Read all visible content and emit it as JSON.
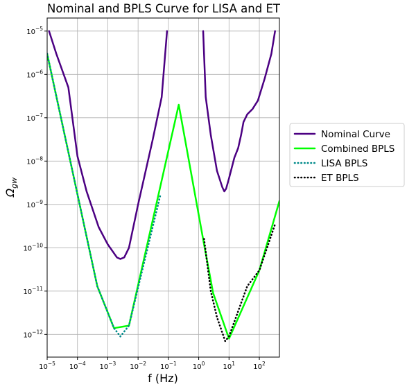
{
  "chart_data": {
    "type": "line",
    "title": "Nominal and BPLS Curve for LISA and ET",
    "xlabel": "f (Hz)",
    "ylabel": "Ω_gw",
    "ylabel_main": "Ω",
    "ylabel_sub": "gw",
    "x_scale": "log",
    "y_scale": "log",
    "xlim": [
      1e-05,
      460
    ],
    "ylim": [
      3e-13,
      2e-05
    ],
    "grid": true,
    "legend_position": "outside-right",
    "x_ticks": [
      {
        "value": 1e-05,
        "base": "10",
        "exp": "−5"
      },
      {
        "value": 0.0001,
        "base": "10",
        "exp": "−4"
      },
      {
        "value": 0.001,
        "base": "10",
        "exp": "−3"
      },
      {
        "value": 0.01,
        "base": "10",
        "exp": "−2"
      },
      {
        "value": 0.1,
        "base": "10",
        "exp": "−1"
      },
      {
        "value": 1,
        "base": "10",
        "exp": "0"
      },
      {
        "value": 10,
        "base": "10",
        "exp": "1"
      },
      {
        "value": 100,
        "base": "10",
        "exp": "2"
      }
    ],
    "y_ticks": [
      {
        "value": 1e-12,
        "base": "10",
        "exp": "−12"
      },
      {
        "value": 1e-11,
        "base": "10",
        "exp": "−11"
      },
      {
        "value": 1e-10,
        "base": "10",
        "exp": "−10"
      },
      {
        "value": 1e-09,
        "base": "10",
        "exp": "−9"
      },
      {
        "value": 1e-08,
        "base": "10",
        "exp": "−8"
      },
      {
        "value": 1e-07,
        "base": "10",
        "exp": "−7"
      },
      {
        "value": 1e-06,
        "base": "10",
        "exp": "−6"
      },
      {
        "value": 1e-05,
        "base": "10",
        "exp": "−5"
      }
    ],
    "series": [
      {
        "name": "Nominal Curve",
        "color": "#4b0082",
        "style": "solid",
        "segments": [
          [
            [
              1.15e-05,
              1e-05
            ],
            [
              2e-05,
              3e-06
            ],
            [
              5e-05,
              5e-07
            ],
            [
              0.0001,
              1.3e-08
            ],
            [
              0.0002,
              2e-09
            ],
            [
              0.0005,
              3e-10
            ],
            [
              0.001,
              1.2e-10
            ],
            [
              0.002,
              6e-11
            ],
            [
              0.0026,
              5.5e-11
            ],
            [
              0.0035,
              6e-11
            ],
            [
              0.005,
              1e-10
            ],
            [
              0.01,
              1e-09
            ],
            [
              0.03,
              3e-08
            ],
            [
              0.06,
              3e-07
            ],
            [
              0.09,
              1e-05
            ]
          ],
          [
            [
              1.4,
              1e-05
            ],
            [
              1.7,
              3e-07
            ],
            [
              2.5,
              4e-08
            ],
            [
              4,
              6e-09
            ],
            [
              6,
              2.5e-09
            ],
            [
              7,
              2e-09
            ],
            [
              8,
              2.3e-09
            ],
            [
              10,
              4e-09
            ],
            [
              15,
              1.2e-08
            ],
            [
              20,
              2e-08
            ],
            [
              25,
              4e-08
            ],
            [
              30,
              8e-08
            ],
            [
              40,
              1.2e-07
            ],
            [
              60,
              1.6e-07
            ],
            [
              90,
              2.5e-07
            ],
            [
              150,
              8e-07
            ],
            [
              250,
              3e-06
            ],
            [
              330,
              1e-05
            ]
          ]
        ]
      },
      {
        "name": "Combined BPLS",
        "color": "#00ff00",
        "style": "solid",
        "segments": [
          [
            [
              1e-05,
              3e-06
            ],
            [
              0.00045,
              1.3e-11
            ],
            [
              0.0016,
              1.4e-12
            ],
            [
              0.005,
              1.6e-12
            ],
            [
              0.22,
              2e-07
            ],
            [
              1.5,
              1.2e-10
            ],
            [
              3,
              9e-12
            ],
            [
              10,
              8e-13
            ],
            [
              100,
              3e-11
            ],
            [
              460,
              1.2e-09
            ]
          ]
        ]
      },
      {
        "name": "LISA BPLS",
        "color": "#008a8a",
        "style": "dotted",
        "segments": [
          [
            [
              1e-05,
              3e-06
            ],
            [
              0.00045,
              1.3e-11
            ],
            [
              0.0016,
              1.4e-12
            ],
            [
              0.0026,
              9e-13
            ],
            [
              0.005,
              1.6e-12
            ],
            [
              0.055,
              1.7e-09
            ]
          ]
        ]
      },
      {
        "name": " ET BPLS",
        "color": "#000000",
        "style": "dotted",
        "segments": [
          [
            [
              1.5,
              1.6e-10
            ],
            [
              2.5,
              1e-11
            ],
            [
              4,
              2.5e-12
            ],
            [
              7.5,
              7e-13
            ],
            [
              10,
              9e-13
            ],
            [
              40,
              1.3e-11
            ],
            [
              100,
              3e-11
            ],
            [
              330,
              3.5e-10
            ]
          ]
        ]
      }
    ]
  }
}
